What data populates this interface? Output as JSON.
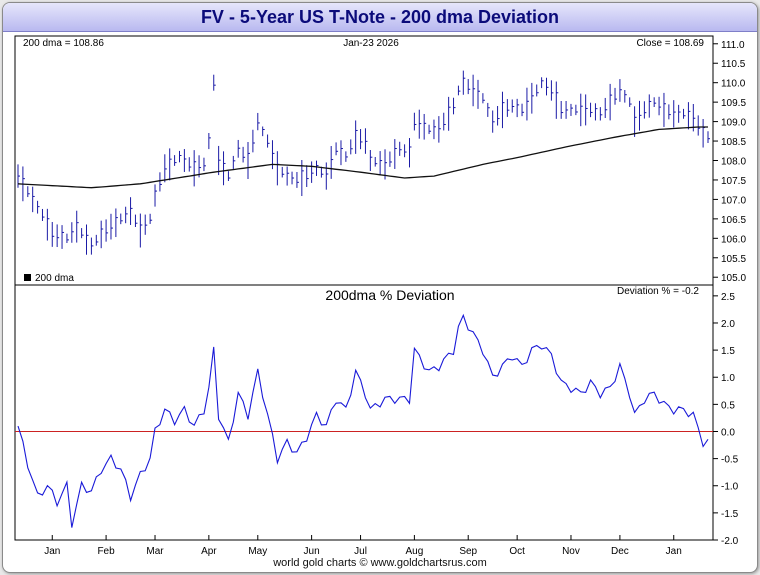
{
  "header": {
    "title": "FV  -  5-Year US T-Note - 200 dma Deviation"
  },
  "colors": {
    "price": "#1a1aa6",
    "ma": "#111111",
    "deviation": "#1a1ad8",
    "zero_line": "#cc2222",
    "axis": "#000000"
  },
  "footer": {
    "credit": "world gold charts © www.goldchartsrus.com"
  },
  "chart_data": [
    {
      "type": "line",
      "title": "5-Year US T-Note",
      "date_label": "Jan-23  2026",
      "ma_label": "200 dma = 108.86",
      "close_label": "Close = 108.69",
      "legend": "200 dma",
      "legend_position": "bottom-left",
      "ylim": [
        104.8,
        111.2
      ],
      "yticks": [
        "105.0",
        "105.5",
        "106.0",
        "106.5",
        "107.0",
        "107.5",
        "108.0",
        "108.5",
        "109.0",
        "109.5",
        "110.0",
        "110.5",
        "111.0"
      ],
      "x_month_labels": [
        "Jan",
        "Feb",
        "Mar",
        "Apr",
        "May",
        "Jun",
        "Jul",
        "Aug",
        "Sep",
        "Oct",
        "Nov",
        "Dec",
        "Jan"
      ],
      "x_month_index": [
        7,
        18,
        28,
        39,
        49,
        60,
        70,
        81,
        92,
        102,
        113,
        123,
        134
      ],
      "n": 142,
      "series": [
        {
          "name": "Price (daily bars, midpoints)",
          "anchors": [
            [
              0,
              107.6
            ],
            [
              3,
              107.0
            ],
            [
              5,
              106.6
            ],
            [
              7,
              106.1
            ],
            [
              10,
              106.0
            ],
            [
              12,
              106.3
            ],
            [
              15,
              105.8
            ],
            [
              17,
              106.1
            ],
            [
              20,
              106.4
            ],
            [
              23,
              106.7
            ],
            [
              25,
              106.2
            ],
            [
              27,
              106.5
            ],
            [
              28,
              107.1
            ],
            [
              30,
              107.8
            ],
            [
              33,
              108.1
            ],
            [
              36,
              107.8
            ],
            [
              38,
              107.9
            ],
            [
              39,
              108.5
            ],
            [
              40,
              110.0
            ],
            [
              41,
              108.0
            ],
            [
              43,
              107.6
            ],
            [
              45,
              108.3
            ],
            [
              47,
              108.0
            ],
            [
              49,
              109.0
            ],
            [
              51,
              108.5
            ],
            [
              53,
              107.8
            ],
            [
              55,
              107.6
            ],
            [
              57,
              107.5
            ],
            [
              59,
              107.6
            ],
            [
              61,
              107.8
            ],
            [
              63,
              107.6
            ],
            [
              65,
              108.3
            ],
            [
              67,
              108.1
            ],
            [
              69,
              108.6
            ],
            [
              71,
              108.5
            ],
            [
              72,
              108.0
            ],
            [
              75,
              107.9
            ],
            [
              78,
              108.3
            ],
            [
              80,
              108.2
            ],
            [
              81,
              109.0
            ],
            [
              84,
              108.8
            ],
            [
              86,
              108.8
            ],
            [
              89,
              109.4
            ],
            [
              90,
              109.8
            ],
            [
              91,
              110.0
            ],
            [
              93,
              109.8
            ],
            [
              95,
              109.6
            ],
            [
              97,
              109.0
            ],
            [
              99,
              109.3
            ],
            [
              101,
              109.4
            ],
            [
              103,
              109.3
            ],
            [
              105,
              109.6
            ],
            [
              107,
              110.0
            ],
            [
              109,
              109.8
            ],
            [
              111,
              109.3
            ],
            [
              113,
              109.3
            ],
            [
              115,
              109.3
            ],
            [
              117,
              109.3
            ],
            [
              119,
              109.2
            ],
            [
              121,
              109.5
            ],
            [
              123,
              109.8
            ],
            [
              125,
              109.5
            ],
            [
              126,
              109.0
            ],
            [
              128,
              109.3
            ],
            [
              130,
              109.5
            ],
            [
              132,
              109.3
            ],
            [
              134,
              109.2
            ],
            [
              136,
              109.2
            ],
            [
              138,
              109.1
            ],
            [
              139,
              108.9
            ],
            [
              140,
              108.7
            ],
            [
              141,
              108.6
            ]
          ]
        },
        {
          "name": "200 dma",
          "anchors": [
            [
              0,
              107.4
            ],
            [
              15,
              107.3
            ],
            [
              25,
              107.4
            ],
            [
              40,
              107.7
            ],
            [
              52,
              107.9
            ],
            [
              60,
              107.85
            ],
            [
              70,
              107.7
            ],
            [
              79,
              107.55
            ],
            [
              85,
              107.6
            ],
            [
              95,
              107.9
            ],
            [
              103,
              108.1
            ],
            [
              112,
              108.35
            ],
            [
              122,
              108.6
            ],
            [
              131,
              108.8
            ],
            [
              139,
              108.86
            ],
            [
              141,
              108.86
            ]
          ]
        }
      ]
    },
    {
      "type": "line",
      "title": "200dma  %  Deviation",
      "deviation_label": "Deviation % = -0.2",
      "ylim": [
        -2.0,
        2.7
      ],
      "yticks": [
        "2.5",
        "2.0",
        "1.5",
        "1.0",
        "0.5",
        "0.0",
        "-0.5",
        "-1.0",
        "-1.5",
        "-2.0"
      ],
      "series": [
        {
          "name": "Deviation %",
          "anchors": [
            [
              0,
              0.1
            ],
            [
              2,
              -0.6
            ],
            [
              4,
              -1.2
            ],
            [
              6,
              -1.0
            ],
            [
              8,
              -1.3
            ],
            [
              10,
              -1.0
            ],
            [
              11,
              -1.7
            ],
            [
              13,
              -1.0
            ],
            [
              15,
              -1.1
            ],
            [
              17,
              -0.7
            ],
            [
              19,
              -0.5
            ],
            [
              21,
              -0.7
            ],
            [
              23,
              -1.2
            ],
            [
              25,
              -0.8
            ],
            [
              27,
              -0.5
            ],
            [
              28,
              0.0
            ],
            [
              30,
              0.4
            ],
            [
              32,
              0.2
            ],
            [
              34,
              0.4
            ],
            [
              36,
              0.1
            ],
            [
              38,
              0.4
            ],
            [
              39,
              0.8
            ],
            [
              40,
              1.5
            ],
            [
              41,
              0.3
            ],
            [
              43,
              -0.2
            ],
            [
              45,
              0.7
            ],
            [
              47,
              0.3
            ],
            [
              49,
              1.1
            ],
            [
              51,
              0.3
            ],
            [
              53,
              -0.5
            ],
            [
              55,
              -0.2
            ],
            [
              57,
              -0.4
            ],
            [
              59,
              -0.1
            ],
            [
              61,
              0.3
            ],
            [
              63,
              0.1
            ],
            [
              65,
              0.6
            ],
            [
              67,
              0.4
            ],
            [
              69,
              1.1
            ],
            [
              71,
              0.7
            ],
            [
              72,
              0.4
            ],
            [
              75,
              0.6
            ],
            [
              78,
              0.6
            ],
            [
              80,
              0.6
            ],
            [
              81,
              1.5
            ],
            [
              84,
              1.1
            ],
            [
              86,
              1.2
            ],
            [
              89,
              1.5
            ],
            [
              90,
              1.9
            ],
            [
              91,
              2.1
            ],
            [
              93,
              1.8
            ],
            [
              95,
              1.5
            ],
            [
              97,
              1.0
            ],
            [
              99,
              1.2
            ],
            [
              101,
              1.4
            ],
            [
              103,
              1.2
            ],
            [
              105,
              1.5
            ],
            [
              107,
              1.6
            ],
            [
              109,
              1.4
            ],
            [
              111,
              0.9
            ],
            [
              113,
              0.8
            ],
            [
              115,
              0.7
            ],
            [
              117,
              0.9
            ],
            [
              119,
              0.7
            ],
            [
              121,
              0.8
            ],
            [
              123,
              1.2
            ],
            [
              125,
              0.7
            ],
            [
              126,
              0.3
            ],
            [
              128,
              0.6
            ],
            [
              130,
              0.7
            ],
            [
              132,
              0.5
            ],
            [
              134,
              0.4
            ],
            [
              136,
              0.4
            ],
            [
              138,
              0.3
            ],
            [
              139,
              0.05
            ],
            [
              140,
              -0.2
            ],
            [
              141,
              -0.2
            ]
          ]
        }
      ]
    }
  ]
}
